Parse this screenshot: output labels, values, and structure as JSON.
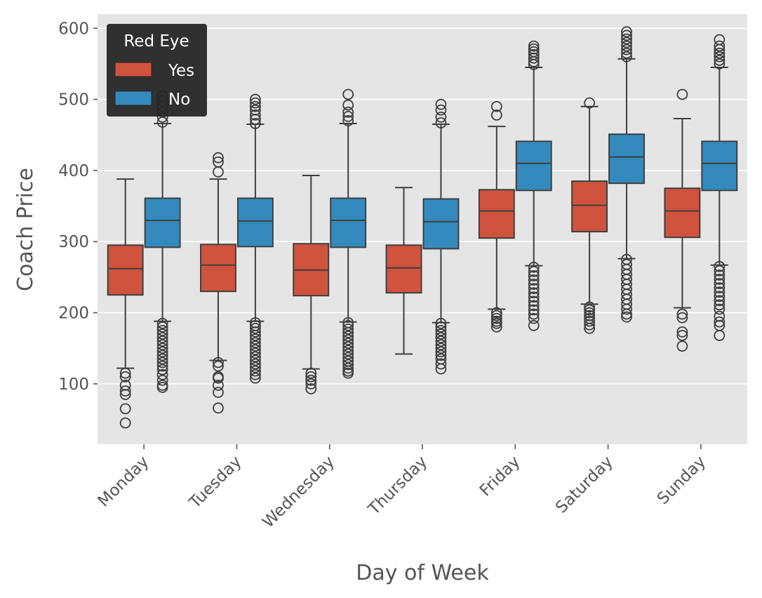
{
  "chart_data": {
    "type": "box",
    "title": "",
    "xlabel": "Day of Week",
    "ylabel": "Coach Price",
    "categories": [
      "Monday",
      "Tuesday",
      "Wednesday",
      "Thursday",
      "Friday",
      "Saturday",
      "Sunday"
    ],
    "ylim": [
      15,
      620
    ],
    "yticks": [
      100,
      200,
      300,
      400,
      500,
      600
    ],
    "grid": true,
    "legend": {
      "title": "Red Eye",
      "placement": "top-left"
    },
    "series": [
      {
        "name": "Yes",
        "color": "#D0533E",
        "boxes": [
          {
            "whislo": 122,
            "q1": 225,
            "med": 262,
            "q3": 295,
            "whishi": 388,
            "fliers": [
              115,
              110,
              98,
              90,
              85,
              65,
              45
            ]
          },
          {
            "whislo": 133,
            "q1": 230,
            "med": 267,
            "q3": 296,
            "whishi": 388,
            "fliers": [
              418,
              412,
              398,
              130,
              125,
              110,
              108,
              98,
              88,
              66
            ]
          },
          {
            "whislo": 121,
            "q1": 224,
            "med": 260,
            "q3": 297,
            "whishi": 393,
            "fliers": [
              115,
              110,
              105,
              100,
              93
            ]
          },
          {
            "whislo": 142,
            "q1": 228,
            "med": 263,
            "q3": 295,
            "whishi": 376,
            "fliers": []
          },
          {
            "whislo": 205,
            "q1": 305,
            "med": 343,
            "q3": 373,
            "whishi": 462,
            "fliers": [
              490,
              478,
              200,
              196,
              192,
              188,
              185,
              180
            ]
          },
          {
            "whislo": 212,
            "q1": 314,
            "med": 351,
            "q3": 385,
            "whishi": 490,
            "fliers": [
              495,
              208,
              204,
              200,
              196,
              192,
              188,
              183,
              178
            ]
          },
          {
            "whislo": 207,
            "q1": 306,
            "med": 343,
            "q3": 375,
            "whishi": 473,
            "fliers": [
              507,
              198,
              193,
              173,
              168,
              153
            ]
          }
        ]
      },
      {
        "name": "No",
        "color": "#348ABD",
        "boxes": [
          {
            "whislo": 188,
            "q1": 292,
            "med": 330,
            "q3": 361,
            "whishi": 466,
            "fliers": [
              505,
              498,
              490,
              482,
              475,
              468,
              185,
              180,
              175,
              170,
              165,
              160,
              155,
              150,
              145,
              140,
              135,
              130,
              125,
              120,
              113,
              105,
              98,
              95
            ]
          },
          {
            "whislo": 188,
            "q1": 293,
            "med": 329,
            "q3": 361,
            "whishi": 465,
            "fliers": [
              500,
              495,
              490,
              485,
              478,
              472,
              466,
              186,
              182,
              178,
              173,
              168,
              163,
              158,
              153,
              148,
              143,
              138,
              133,
              128,
              123,
              118,
              113,
              108
            ]
          },
          {
            "whislo": 187,
            "q1": 292,
            "med": 330,
            "q3": 361,
            "whishi": 466,
            "fliers": [
              507,
              492,
              482,
              476,
              470,
              186,
              182,
              177,
              172,
              167,
              162,
              157,
              152,
              147,
              142,
              137,
              132,
              127,
              122,
              118,
              115
            ]
          },
          {
            "whislo": 186,
            "q1": 290,
            "med": 328,
            "q3": 360,
            "whishi": 465,
            "fliers": [
              493,
              485,
              475,
              467,
              185,
              180,
              175,
              170,
              165,
              160,
              155,
              150,
              145,
              140,
              135,
              128,
              121
            ]
          },
          {
            "whislo": 266,
            "q1": 372,
            "med": 410,
            "q3": 441,
            "whishi": 545,
            "fliers": [
              575,
              571,
              567,
              563,
              558,
              553,
              549,
              264,
              258,
              252,
              246,
              240,
              234,
              228,
              222,
              216,
              210,
              204,
              198,
              192,
              182
            ]
          },
          {
            "whislo": 276,
            "q1": 382,
            "med": 419,
            "q3": 451,
            "whishi": 557,
            "fliers": [
              595,
              590,
              585,
              580,
              575,
              570,
              565,
              560,
              275,
              268,
              261,
              254,
              247,
              240,
              233,
              226,
              219,
              212,
              205,
              198,
              194
            ]
          },
          {
            "whislo": 267,
            "q1": 372,
            "med": 410,
            "q3": 441,
            "whishi": 545,
            "fliers": [
              584,
              575,
              570,
              565,
              560,
              555,
              550,
              265,
              259,
              253,
              247,
              241,
              235,
              229,
              223,
              217,
              211,
              205,
              195,
              187,
              182,
              168
            ]
          }
        ]
      }
    ]
  }
}
